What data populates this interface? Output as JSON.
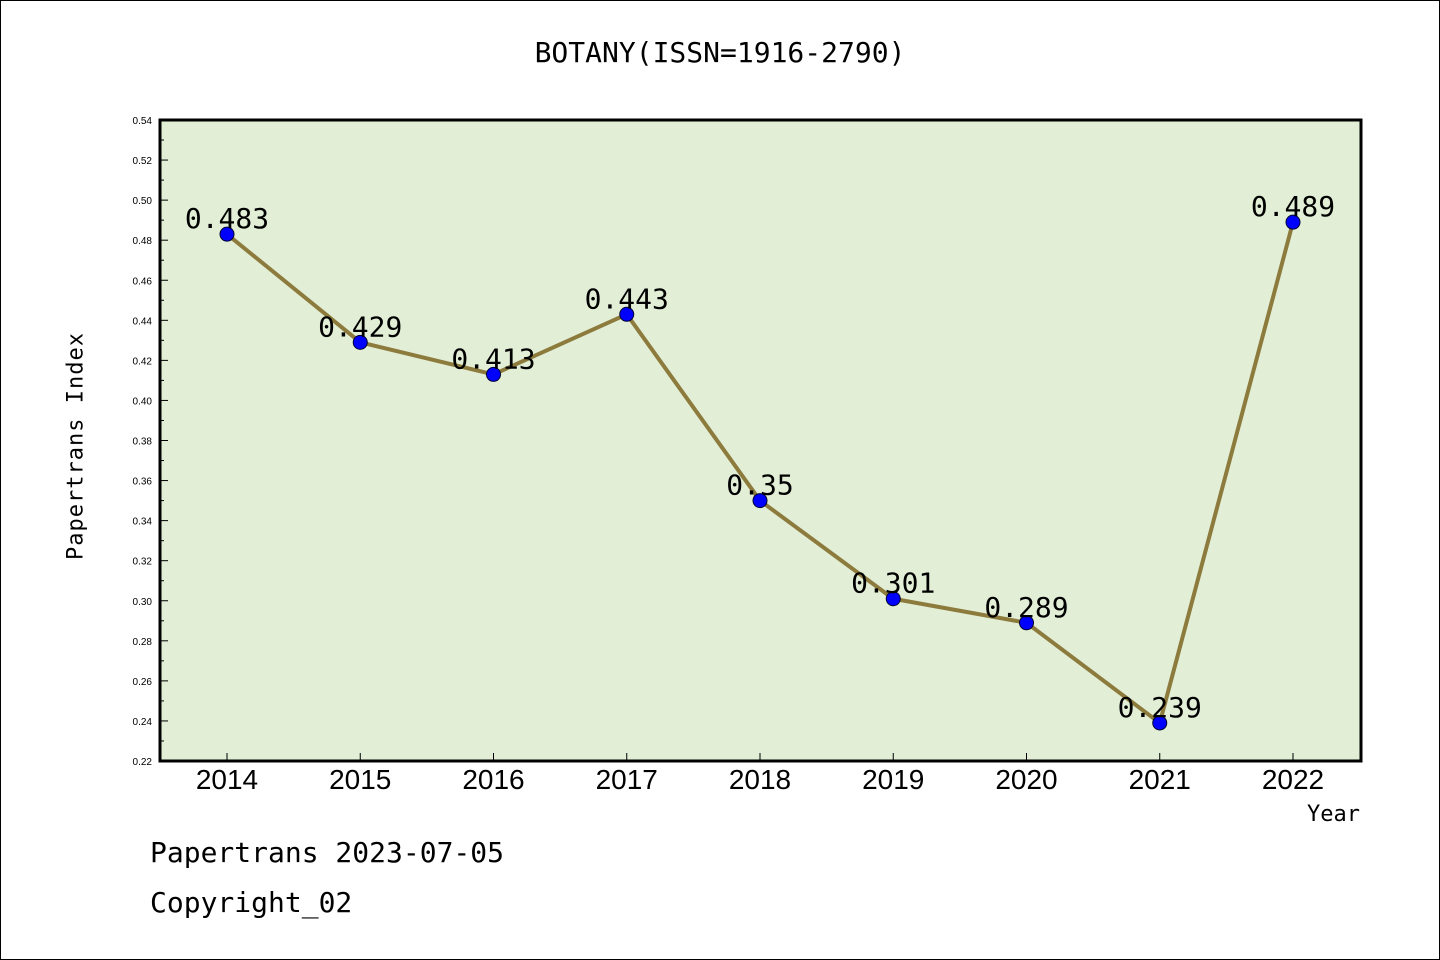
{
  "title": "BOTANY(ISSN=1916-2790)",
  "footer": {
    "line1": "Papertrans 2023-07-05",
    "line2": "Copyright_02"
  },
  "colors": {
    "plot_bg": "#e2efd6",
    "line": "#8c7b3c",
    "marker": "#0000ff"
  },
  "chart_data": {
    "type": "line",
    "title": "BOTANY(ISSN=1916-2790)",
    "xlabel": "Year",
    "ylabel": "Papertrans Index",
    "categories": [
      "2014",
      "2015",
      "2016",
      "2017",
      "2018",
      "2019",
      "2020",
      "2021",
      "2022"
    ],
    "series": [
      {
        "values": [
          0.483,
          0.429,
          0.413,
          0.443,
          0.35,
          0.301,
          0.289,
          0.239,
          0.489
        ]
      }
    ],
    "data_labels": [
      "0.483",
      "0.429",
      "0.413",
      "0.443",
      "0.35",
      "0.301",
      "0.289",
      "0.239",
      "0.489"
    ],
    "ylim": [
      0.22,
      0.54
    ],
    "yticks": [
      "0.22",
      "0.24",
      "0.26",
      "0.28",
      "0.30",
      "0.32",
      "0.34",
      "0.36",
      "0.38",
      "0.40",
      "0.42",
      "0.44",
      "0.46",
      "0.48",
      "0.50",
      "0.52",
      "0.54"
    ],
    "grid": false,
    "legend": "none"
  }
}
